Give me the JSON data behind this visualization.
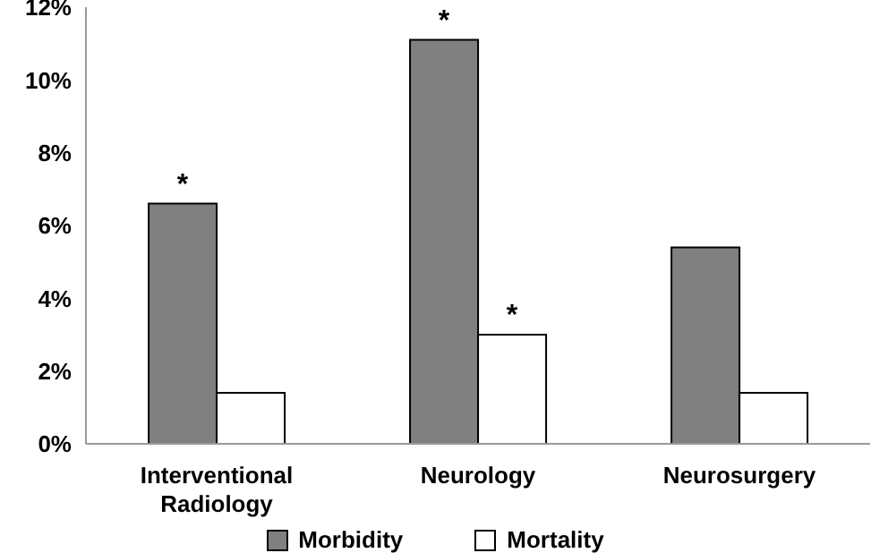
{
  "chart_data": {
    "type": "bar",
    "categories": [
      "Interventional Radiology",
      "Neurology",
      "Neurosurgery"
    ],
    "series": [
      {
        "name": "Morbidity",
        "color": "#808080",
        "values": [
          6.6,
          11.1,
          5.4
        ]
      },
      {
        "name": "Mortality",
        "color": "#ffffff",
        "values": [
          1.4,
          3.0,
          1.4
        ]
      }
    ],
    "ylim": [
      0,
      12
    ],
    "yticks": [
      {
        "value": 0,
        "label": "0%"
      },
      {
        "value": 2,
        "label": "2%"
      },
      {
        "value": 4,
        "label": "4%"
      },
      {
        "value": 6,
        "label": "6%"
      },
      {
        "value": 8,
        "label": "8%"
      },
      {
        "value": 10,
        "label": "10%"
      },
      {
        "value": 12,
        "label": "12%"
      }
    ],
    "annotations": [
      {
        "text": "*",
        "x": "Interventional Radiology",
        "y": 6.6
      },
      {
        "text": "*",
        "x": "Neurology",
        "y": 11.1
      },
      {
        "text": "*",
        "x": "Neurology",
        "y": 3.0
      }
    ],
    "grid": false,
    "legend": "bottom"
  }
}
